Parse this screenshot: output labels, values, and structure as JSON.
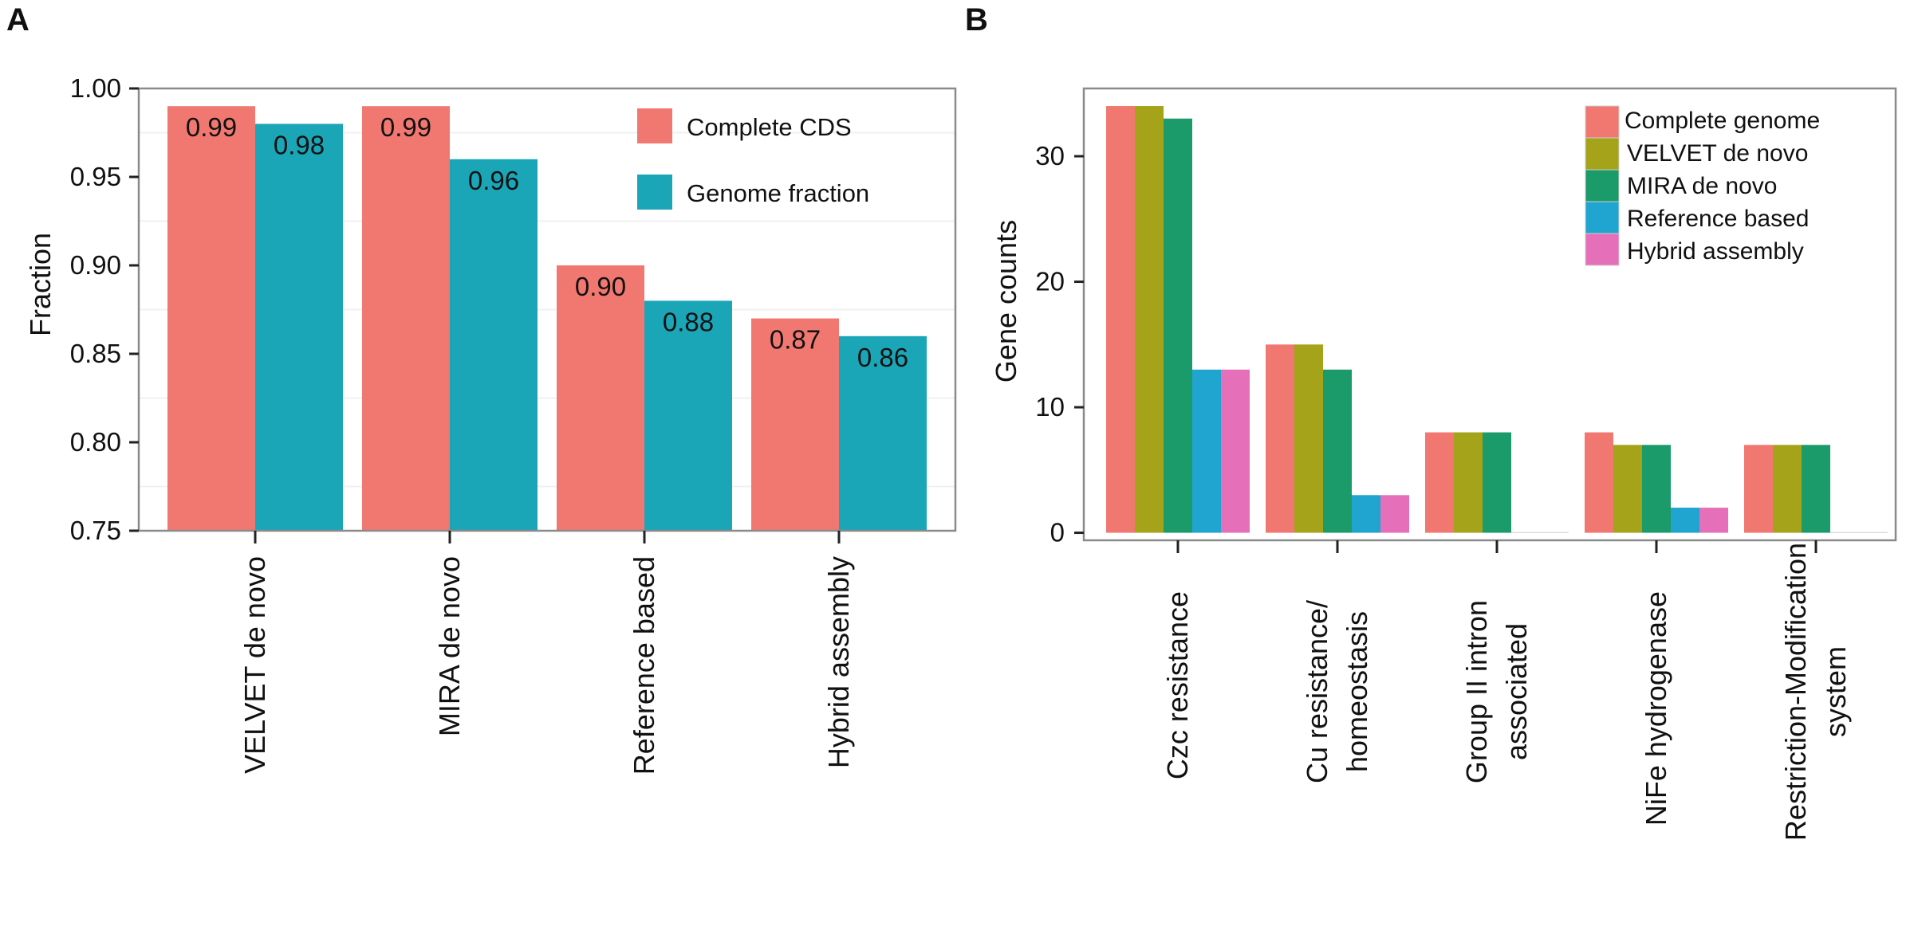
{
  "panel_labels": {
    "a": "A",
    "b": "B"
  },
  "colors": {
    "complete_cds": "#F17870",
    "genome_fraction": "#1BA6B8",
    "complete_genome": "#F17870",
    "velvet": "#A4A31A",
    "mira": "#1B9A6A",
    "reference": "#1FA5D0",
    "hybrid": "#E56FB8"
  },
  "chart_data": [
    {
      "type": "bar",
      "panel": "A",
      "categories": [
        "VELVET de novo",
        "MIRA de novo",
        "Reference based",
        "Hybrid assembly"
      ],
      "series": [
        {
          "name": "Complete CDS",
          "values": [
            0.99,
            0.99,
            0.9,
            0.87
          ],
          "labels": [
            "0.99",
            "0.99",
            "0.90",
            "0.87"
          ]
        },
        {
          "name": "Genome fraction",
          "values": [
            0.98,
            0.96,
            0.88,
            0.86
          ],
          "labels": [
            "0.98",
            "0.96",
            "0.88",
            "0.86"
          ]
        }
      ],
      "ylabel": "Fraction",
      "xlabel": "",
      "ylim": [
        0.75,
        1.0
      ],
      "yticks": [
        "0.75",
        "0.80",
        "0.85",
        "0.90",
        "0.95",
        "1.00"
      ],
      "legend_position": "top-right",
      "grid": true
    },
    {
      "type": "bar",
      "panel": "B",
      "categories": [
        [
          "Czc resistance"
        ],
        [
          "Cu resistance/",
          "homeostasis"
        ],
        [
          "Group II intron",
          "associated"
        ],
        [
          "NiFe hydrogenase"
        ],
        [
          "Restriction-Modification",
          "system"
        ]
      ],
      "series": [
        {
          "name": "Complete genome",
          "values": [
            34,
            15,
            8,
            8,
            7
          ]
        },
        {
          "name": "VELVET de novo",
          "values": [
            34,
            15,
            8,
            7,
            7
          ]
        },
        {
          "name": "MIRA de novo",
          "values": [
            33,
            13,
            8,
            7,
            7
          ]
        },
        {
          "name": "Reference based",
          "values": [
            13,
            3,
            0,
            2,
            0
          ]
        },
        {
          "name": "Hybrid assembly",
          "values": [
            13,
            3,
            0,
            2,
            0
          ]
        }
      ],
      "ylabel": "Gene counts",
      "xlabel": "",
      "ylim": [
        -0.6,
        35.4
      ],
      "yticks": [
        "0",
        "10",
        "20",
        "30"
      ],
      "legend_position": "top-right",
      "grid": false
    }
  ]
}
